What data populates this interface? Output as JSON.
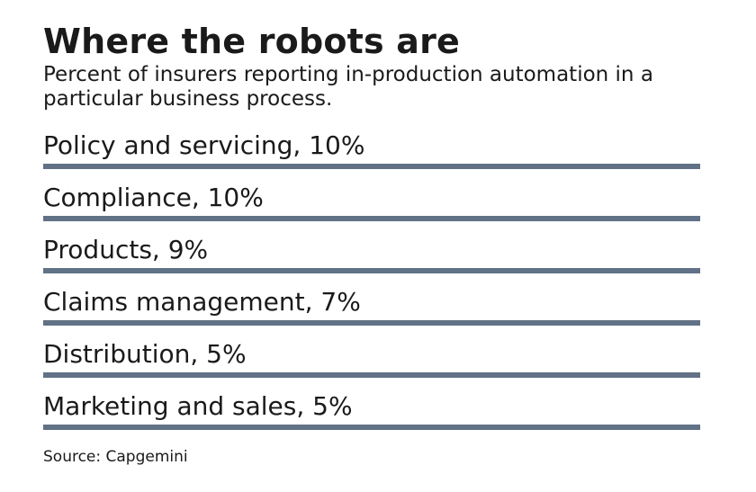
{
  "title": "Where the robots are",
  "subtitle": "Percent of insurers reporting in-production automation in a particular business process.",
  "source": "Source: Capgemini",
  "colors": {
    "bar": "#617286",
    "text": "#1a1a1a"
  },
  "chart_data": {
    "type": "bar",
    "title": "Where the robots are",
    "subtitle": "Percent of insurers reporting in-production automation in a particular business process.",
    "categories": [
      "Policy and servicing",
      "Compliance",
      "Products",
      "Claims management",
      "Distribution",
      "Marketing and sales"
    ],
    "values": [
      10,
      10,
      9,
      7,
      5,
      5
    ],
    "labels": [
      "Policy and servicing, 10%",
      "Compliance, 10%",
      "Products, 9%",
      "Claims management, 7%",
      "Distribution, 5%",
      "Marketing and sales, 5%"
    ],
    "unit": "%",
    "grid": false,
    "legend": "none"
  }
}
